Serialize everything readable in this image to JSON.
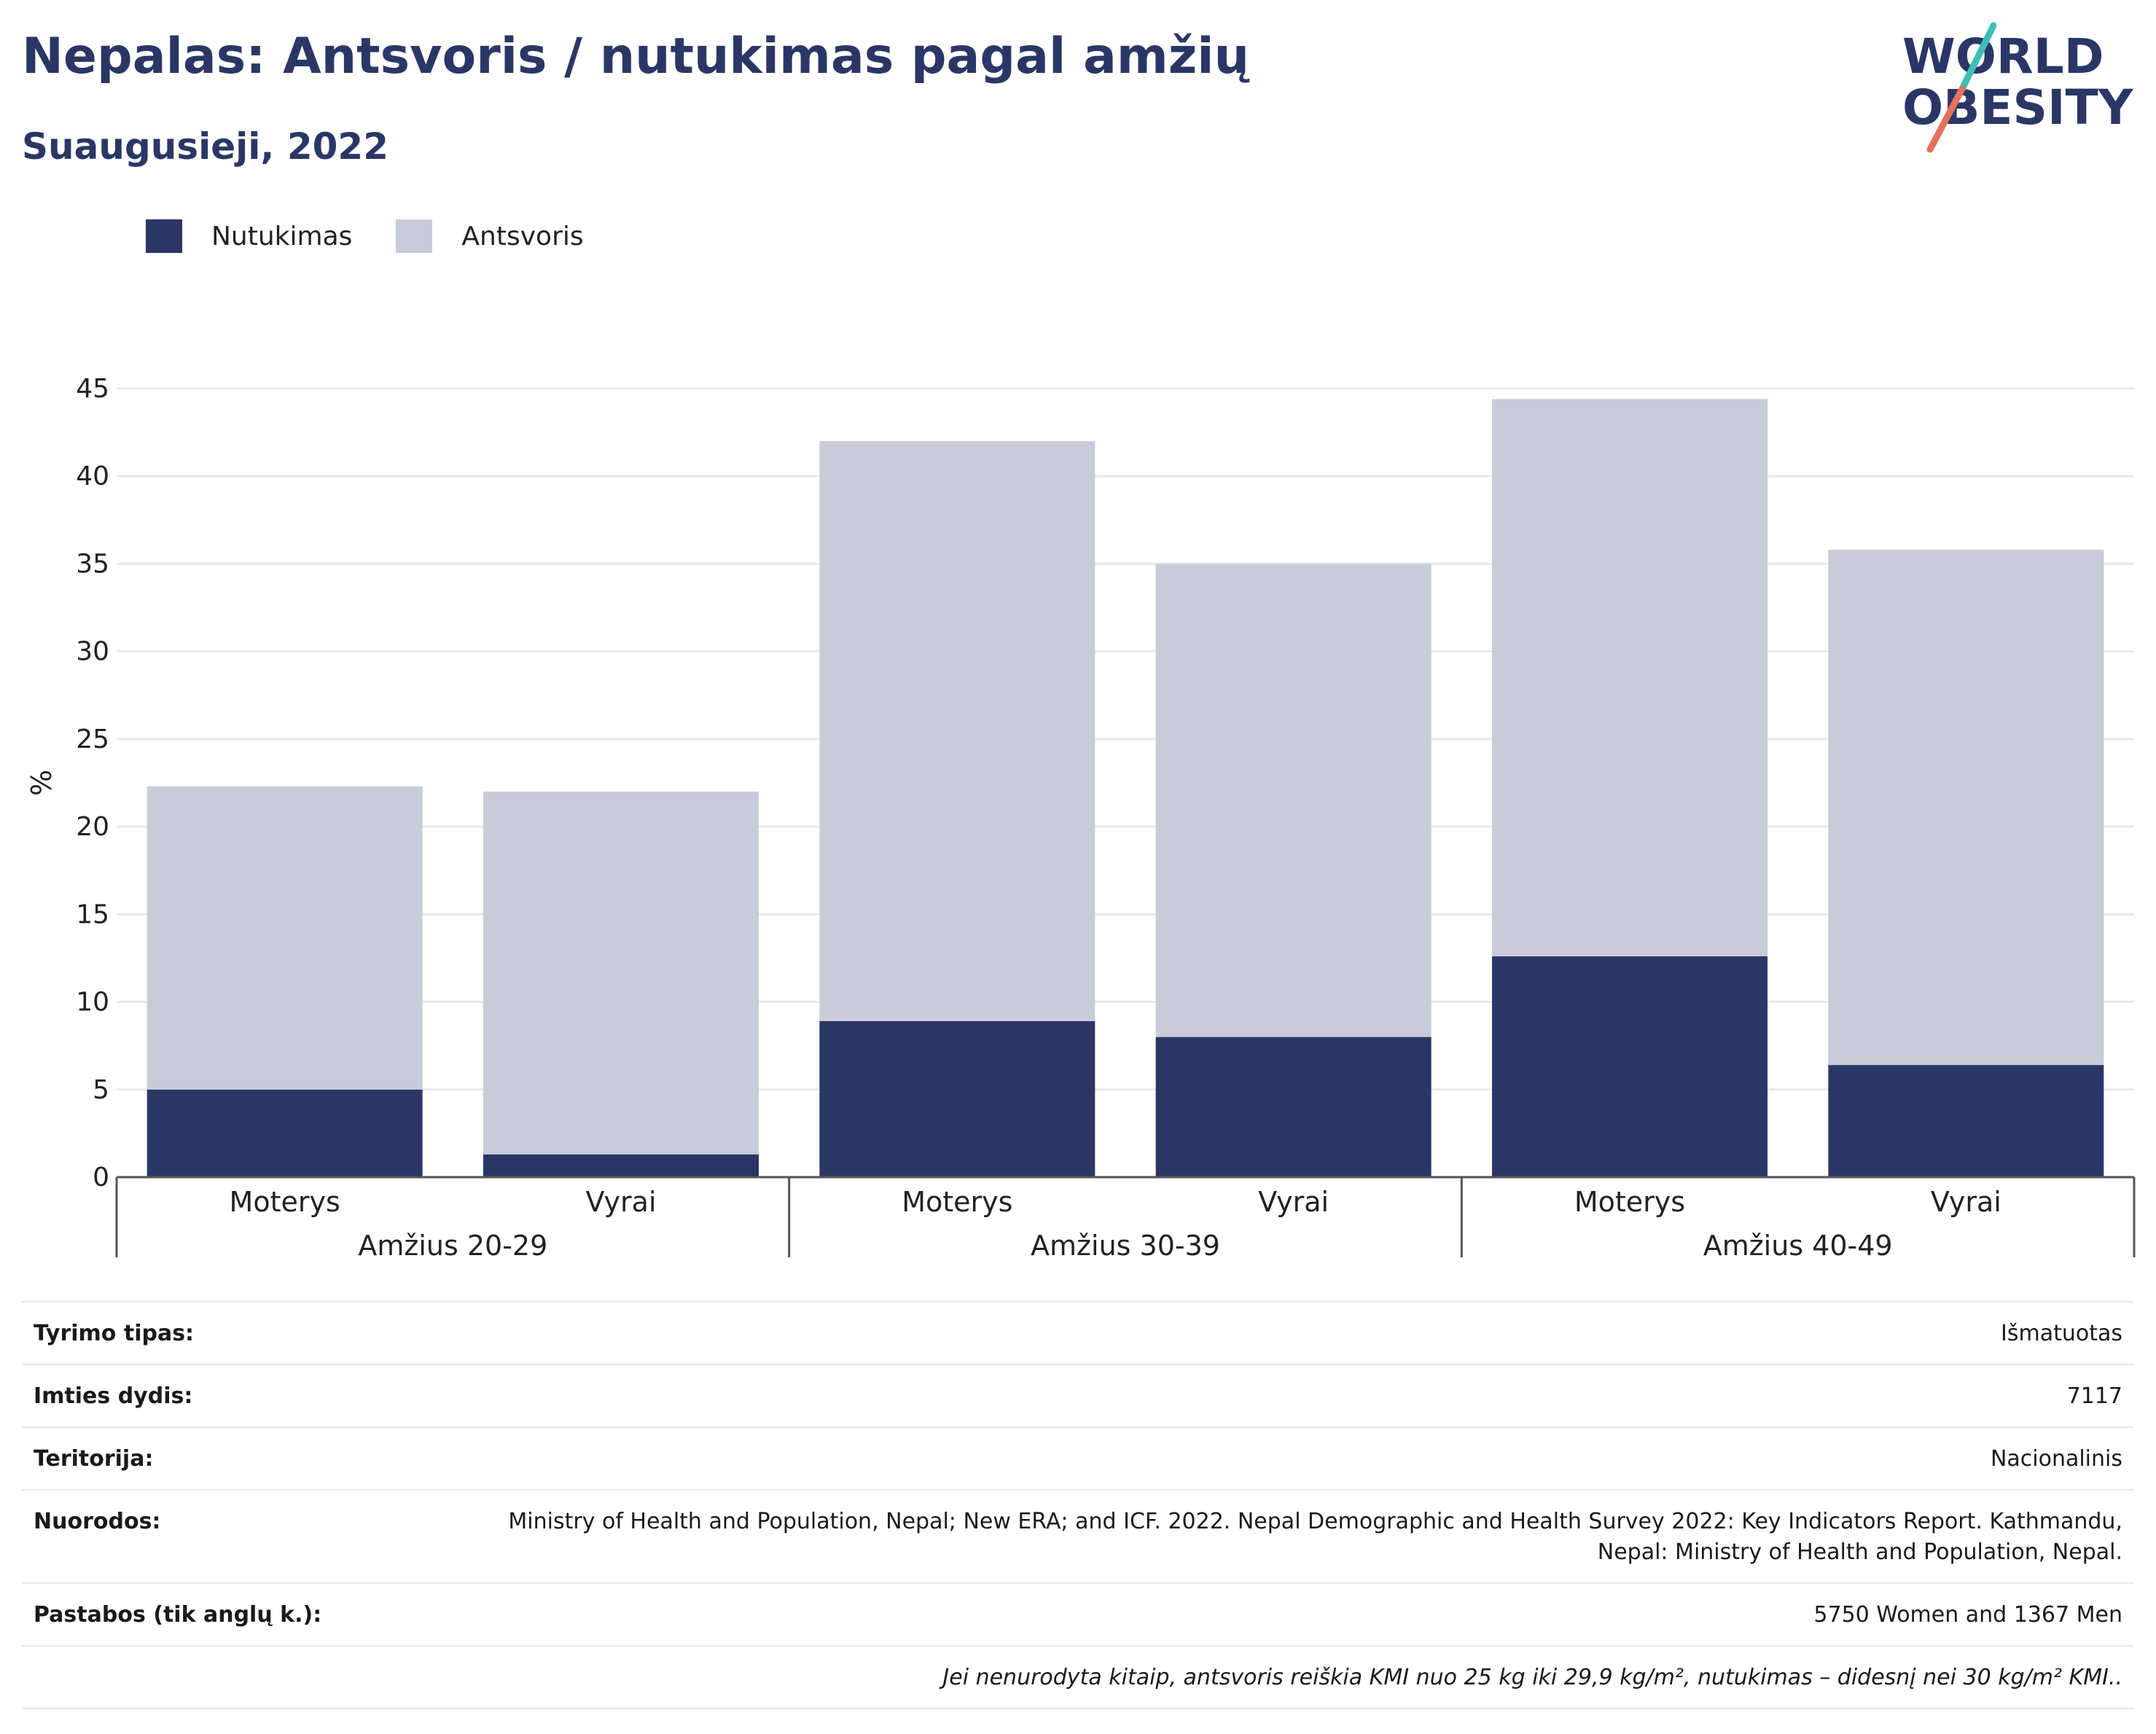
{
  "header": {
    "title": "Nepalas: Antsvoris / nutukimas pagal amžių",
    "subtitle": "Suaugusieji, 2022"
  },
  "logo": {
    "line1": "WORLD",
    "line2": "OBESITY"
  },
  "legend": [
    {
      "label": "Nutukimas",
      "color": "#2a3766"
    },
    {
      "label": "Antsvoris",
      "color": "#c9ccd8"
    }
  ],
  "chart_data": {
    "type": "bar",
    "stacked": true,
    "ylabel": "%",
    "ylim": [
      0,
      45
    ],
    "yticks": [
      0,
      5,
      10,
      15,
      20,
      25,
      30,
      35,
      40,
      45
    ],
    "grid": true,
    "legend_position": "top-left",
    "groups": [
      "Amžius 20-29",
      "Amžius 30-39",
      "Amžius 40-49"
    ],
    "categories": [
      "Moterys",
      "Vyrai",
      "Moterys",
      "Vyrai",
      "Moterys",
      "Vyrai"
    ],
    "series": [
      {
        "name": "Nutukimas",
        "color": "#2a3766",
        "values": [
          5.0,
          1.3,
          8.9,
          8.0,
          12.6,
          6.4
        ]
      },
      {
        "name": "Antsvoris",
        "color": "#c9ccd8",
        "values": [
          17.3,
          20.7,
          33.1,
          27.0,
          31.8,
          29.4
        ]
      }
    ]
  },
  "info": {
    "rows": [
      {
        "label": "Tyrimo tipas:",
        "value": "Išmatuotas"
      },
      {
        "label": "Imties dydis:",
        "value": "7117"
      },
      {
        "label": "Teritorija:",
        "value": "Nacionalinis"
      },
      {
        "label": "Nuorodos:",
        "value": "Ministry of Health and Population, Nepal; New ERA; and ICF. 2022. Nepal Demographic and Health Survey 2022: Key Indicators Report. Kathmandu, Nepal: Ministry of Health and Population, Nepal."
      },
      {
        "label": "Pastabos (tik anglų k.):",
        "value": "5750 Women and 1367 Men"
      }
    ],
    "note": "Jei nenurodyta kitaip, antsvoris reiškia KMI nuo 25 kg iki 29,9 kg/m², nutukimas – didesnį nei 30 kg/m² KMI.."
  }
}
